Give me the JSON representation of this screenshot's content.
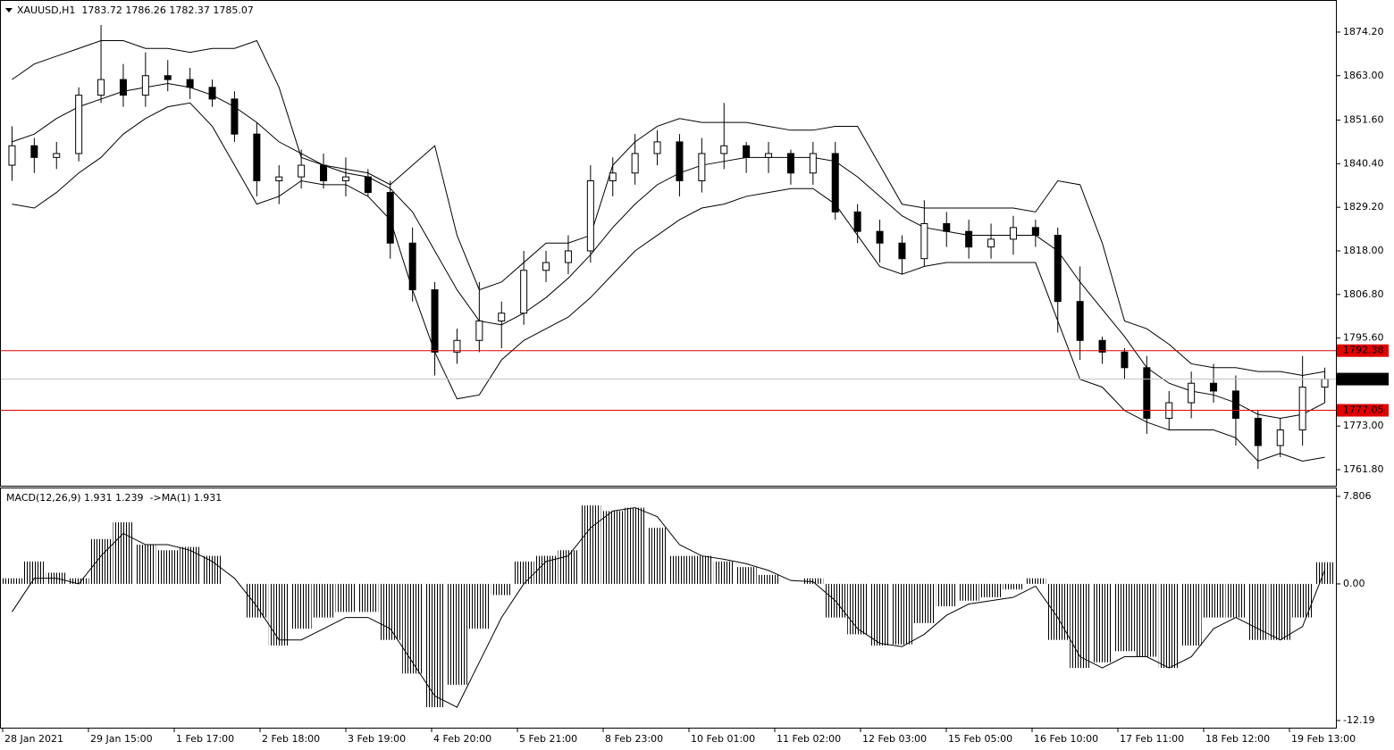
{
  "chart_data": [
    {
      "type": "candlestick",
      "title": "XAUUSD,H1  1783.72 1786.26 1782.37 1785.07",
      "open": [
        1840,
        1845,
        1842,
        1843,
        1858,
        1862,
        1858,
        1863,
        1862,
        1860,
        1857,
        1848,
        1836,
        1837,
        1840,
        1836,
        1837,
        1833,
        1820,
        1808,
        1792,
        1795,
        1800,
        1802,
        1813,
        1815,
        1818,
        1836,
        1838,
        1843,
        1846,
        1836,
        1843,
        1845,
        1842,
        1843,
        1838,
        1843,
        1828,
        1823,
        1820,
        1816,
        1825,
        1823,
        1819,
        1821,
        1824,
        1822,
        1805,
        1795,
        1792,
        1788,
        1775,
        1779,
        1784,
        1782,
        1775,
        1768,
        1772,
        1783
      ],
      "high": [
        1850,
        1847,
        1846,
        1860,
        1876,
        1866,
        1869,
        1867,
        1865,
        1862,
        1859,
        1851,
        1840,
        1844,
        1843,
        1842,
        1839,
        1836,
        1824,
        1810,
        1798,
        1810,
        1805,
        1818,
        1818,
        1822,
        1840,
        1842,
        1848,
        1849,
        1848,
        1847,
        1856,
        1846,
        1846,
        1844,
        1846,
        1846,
        1830,
        1826,
        1822,
        1831,
        1828,
        1826,
        1825,
        1827,
        1826,
        1824,
        1814,
        1796,
        1793,
        1791,
        1782,
        1787,
        1789,
        1786,
        1777,
        1775,
        1791,
        1788
      ],
      "low": [
        1836,
        1838,
        1839,
        1841,
        1856,
        1855,
        1855,
        1859,
        1857,
        1855,
        1846,
        1832,
        1830,
        1834,
        1834,
        1832,
        1832,
        1816,
        1805,
        1786,
        1789,
        1792,
        1793,
        1799,
        1810,
        1812,
        1815,
        1832,
        1835,
        1840,
        1832,
        1833,
        1839,
        1838,
        1838,
        1835,
        1835,
        1826,
        1820,
        1815,
        1812,
        1814,
        1819,
        1816,
        1816,
        1817,
        1819,
        1797,
        1790,
        1789,
        1785,
        1771,
        1772,
        1775,
        1779,
        1768,
        1762,
        1765,
        1768,
        1779
      ],
      "close": [
        1845,
        1842,
        1843,
        1858,
        1862,
        1858,
        1863,
        1862,
        1860,
        1857,
        1848,
        1836,
        1837,
        1840,
        1836,
        1837,
        1833,
        1820,
        1808,
        1792,
        1795,
        1800,
        1802,
        1813,
        1815,
        1818,
        1836,
        1838,
        1843,
        1846,
        1836,
        1843,
        1845,
        1842,
        1843,
        1838,
        1843,
        1828,
        1823,
        1820,
        1816,
        1825,
        1823,
        1819,
        1821,
        1824,
        1822,
        1805,
        1795,
        1792,
        1788,
        1775,
        1779,
        1784,
        1782,
        1775,
        1768,
        1772,
        1783,
        1785.07
      ],
      "series": [
        {
          "color": "#000000",
          "values": [
            1862,
            1866,
            1868,
            1870,
            1872,
            1872,
            1870,
            1870,
            1869,
            1870,
            1870,
            1872,
            1860,
            1842,
            1840,
            1839,
            1838,
            1835,
            1840,
            1845,
            1822,
            1808,
            1810,
            1815,
            1820,
            1820,
            1822,
            1840,
            1846,
            1850,
            1852,
            1851,
            1851,
            1851,
            1850,
            1849,
            1849,
            1850,
            1850,
            1840,
            1830,
            1829,
            1829,
            1829,
            1829,
            1829,
            1828,
            1836,
            1835,
            1820,
            1800,
            1798,
            1794,
            1789,
            1788,
            1788,
            1787,
            1787,
            1786,
            1787
          ]
        },
        {
          "color": "#000000",
          "values": [
            1846,
            1848,
            1852,
            1855,
            1857,
            1859,
            1860,
            1861,
            1860,
            1858,
            1855,
            1851,
            1846,
            1843,
            1840,
            1838,
            1837,
            1834,
            1828,
            1818,
            1808,
            1800,
            1799,
            1802,
            1806,
            1811,
            1817,
            1824,
            1830,
            1835,
            1838,
            1840,
            1841,
            1842,
            1842,
            1842,
            1842,
            1841,
            1837,
            1832,
            1827,
            1824,
            1823,
            1822,
            1822,
            1822,
            1822,
            1818,
            1810,
            1803,
            1796,
            1788,
            1784,
            1782,
            1781,
            1779,
            1776,
            1775,
            1776,
            1779
          ]
        },
        {
          "color": "#000000",
          "values": [
            1830,
            1829,
            1833,
            1838,
            1842,
            1848,
            1852,
            1855,
            1856,
            1850,
            1840,
            1830,
            1832,
            1836,
            1835,
            1835,
            1832,
            1826,
            1808,
            1792,
            1780,
            1781,
            1790,
            1795,
            1798,
            1801,
            1806,
            1812,
            1818,
            1822,
            1826,
            1829,
            1830,
            1832,
            1833,
            1834,
            1834,
            1830,
            1822,
            1814,
            1812,
            1814,
            1815,
            1815,
            1815,
            1815,
            1815,
            1800,
            1785,
            1783,
            1777,
            1774,
            1772,
            1772,
            1772,
            1770,
            1764,
            1766,
            1764,
            1765
          ]
        }
      ],
      "hlines": [
        {
          "value": 1792.38,
          "color": "#e00000"
        },
        {
          "value": 1785.07,
          "color": "#000000"
        },
        {
          "value": 1777.05,
          "color": "#e00000"
        }
      ],
      "ylim": [
        1757.68,
        1882.21
      ],
      "yticks": [
        {
          "value": 1874.2,
          "label": "1874.20"
        },
        {
          "value": 1863,
          "label": "1863.00"
        },
        {
          "value": 1851.6,
          "label": "1851.60"
        },
        {
          "value": 1840.4,
          "label": "1840.40"
        },
        {
          "value": 1829.2,
          "label": "1829.20"
        },
        {
          "value": 1818,
          "label": "1818.00"
        },
        {
          "value": 1806.8,
          "label": "1806.80"
        },
        {
          "value": 1795.6,
          "label": "1795.60"
        },
        {
          "value": 1773,
          "label": "1773.00"
        },
        {
          "value": 1761.8,
          "label": "1761.80"
        }
      ]
    },
    {
      "type": "macd",
      "title": "MACD(12,26,9) 1.931 1.239  ->MA(1) 1.931",
      "histogram": [
        0.5,
        2,
        1,
        0.5,
        4,
        5.5,
        3.5,
        3,
        3.3,
        2.5,
        0,
        -3,
        -5.5,
        -4,
        -3,
        -2.5,
        -2.5,
        -5,
        -8,
        -11,
        -9,
        -4,
        -1,
        2,
        2.5,
        3,
        7,
        6.5,
        6.8,
        5,
        2.5,
        2.5,
        2,
        1.5,
        0.8,
        0,
        0.5,
        -3,
        -4.5,
        -5.5,
        -5.4,
        -3.5,
        -2,
        -1.5,
        -1.2,
        -0.5,
        0.5,
        -5,
        -7.5,
        -7,
        -6,
        -6.5,
        -7.5,
        -5.5,
        -3,
        -3,
        -5,
        -5,
        -3,
        1.931
      ],
      "signal": [
        -2.5,
        0.5,
        0.5,
        0,
        2.5,
        4.5,
        3.5,
        3.5,
        3,
        2,
        0.5,
        -2,
        -5,
        -5,
        -4,
        -3,
        -3,
        -4,
        -7,
        -10,
        -11,
        -7,
        -3,
        0,
        2,
        2.5,
        5,
        6.5,
        6.8,
        6,
        3.5,
        2.5,
        2.2,
        1.8,
        1.2,
        0.3,
        0.2,
        -1.5,
        -4,
        -5.3,
        -5.6,
        -4.5,
        -2.8,
        -1.8,
        -1.5,
        -1.2,
        -0.2,
        -3,
        -6.5,
        -7.5,
        -6.5,
        -6.5,
        -7.5,
        -6.5,
        -4,
        -3,
        -4,
        -5,
        -3.8,
        1.239
      ],
      "ylim": [
        -12.83,
        8.52
      ],
      "yticks": [
        7.806,
        {
          "value": 0,
          "label": "0.00"
        },
        -12.19
      ],
      "x_labels": [
        "28 Jan 2021",
        "29 Jan 15:00",
        "1 Feb 17:00",
        "2 Feb 18:00",
        "3 Feb 19:00",
        "4 Feb 20:00",
        "5 Feb 21:00",
        "8 Feb 23:00",
        "10 Feb 01:00",
        "11 Feb 02:00",
        "12 Feb 03:00",
        "15 Feb 05:00",
        "16 Feb 10:00",
        "17 Feb 11:00",
        "18 Feb 12:00",
        "19 Feb 13:00"
      ]
    }
  ]
}
